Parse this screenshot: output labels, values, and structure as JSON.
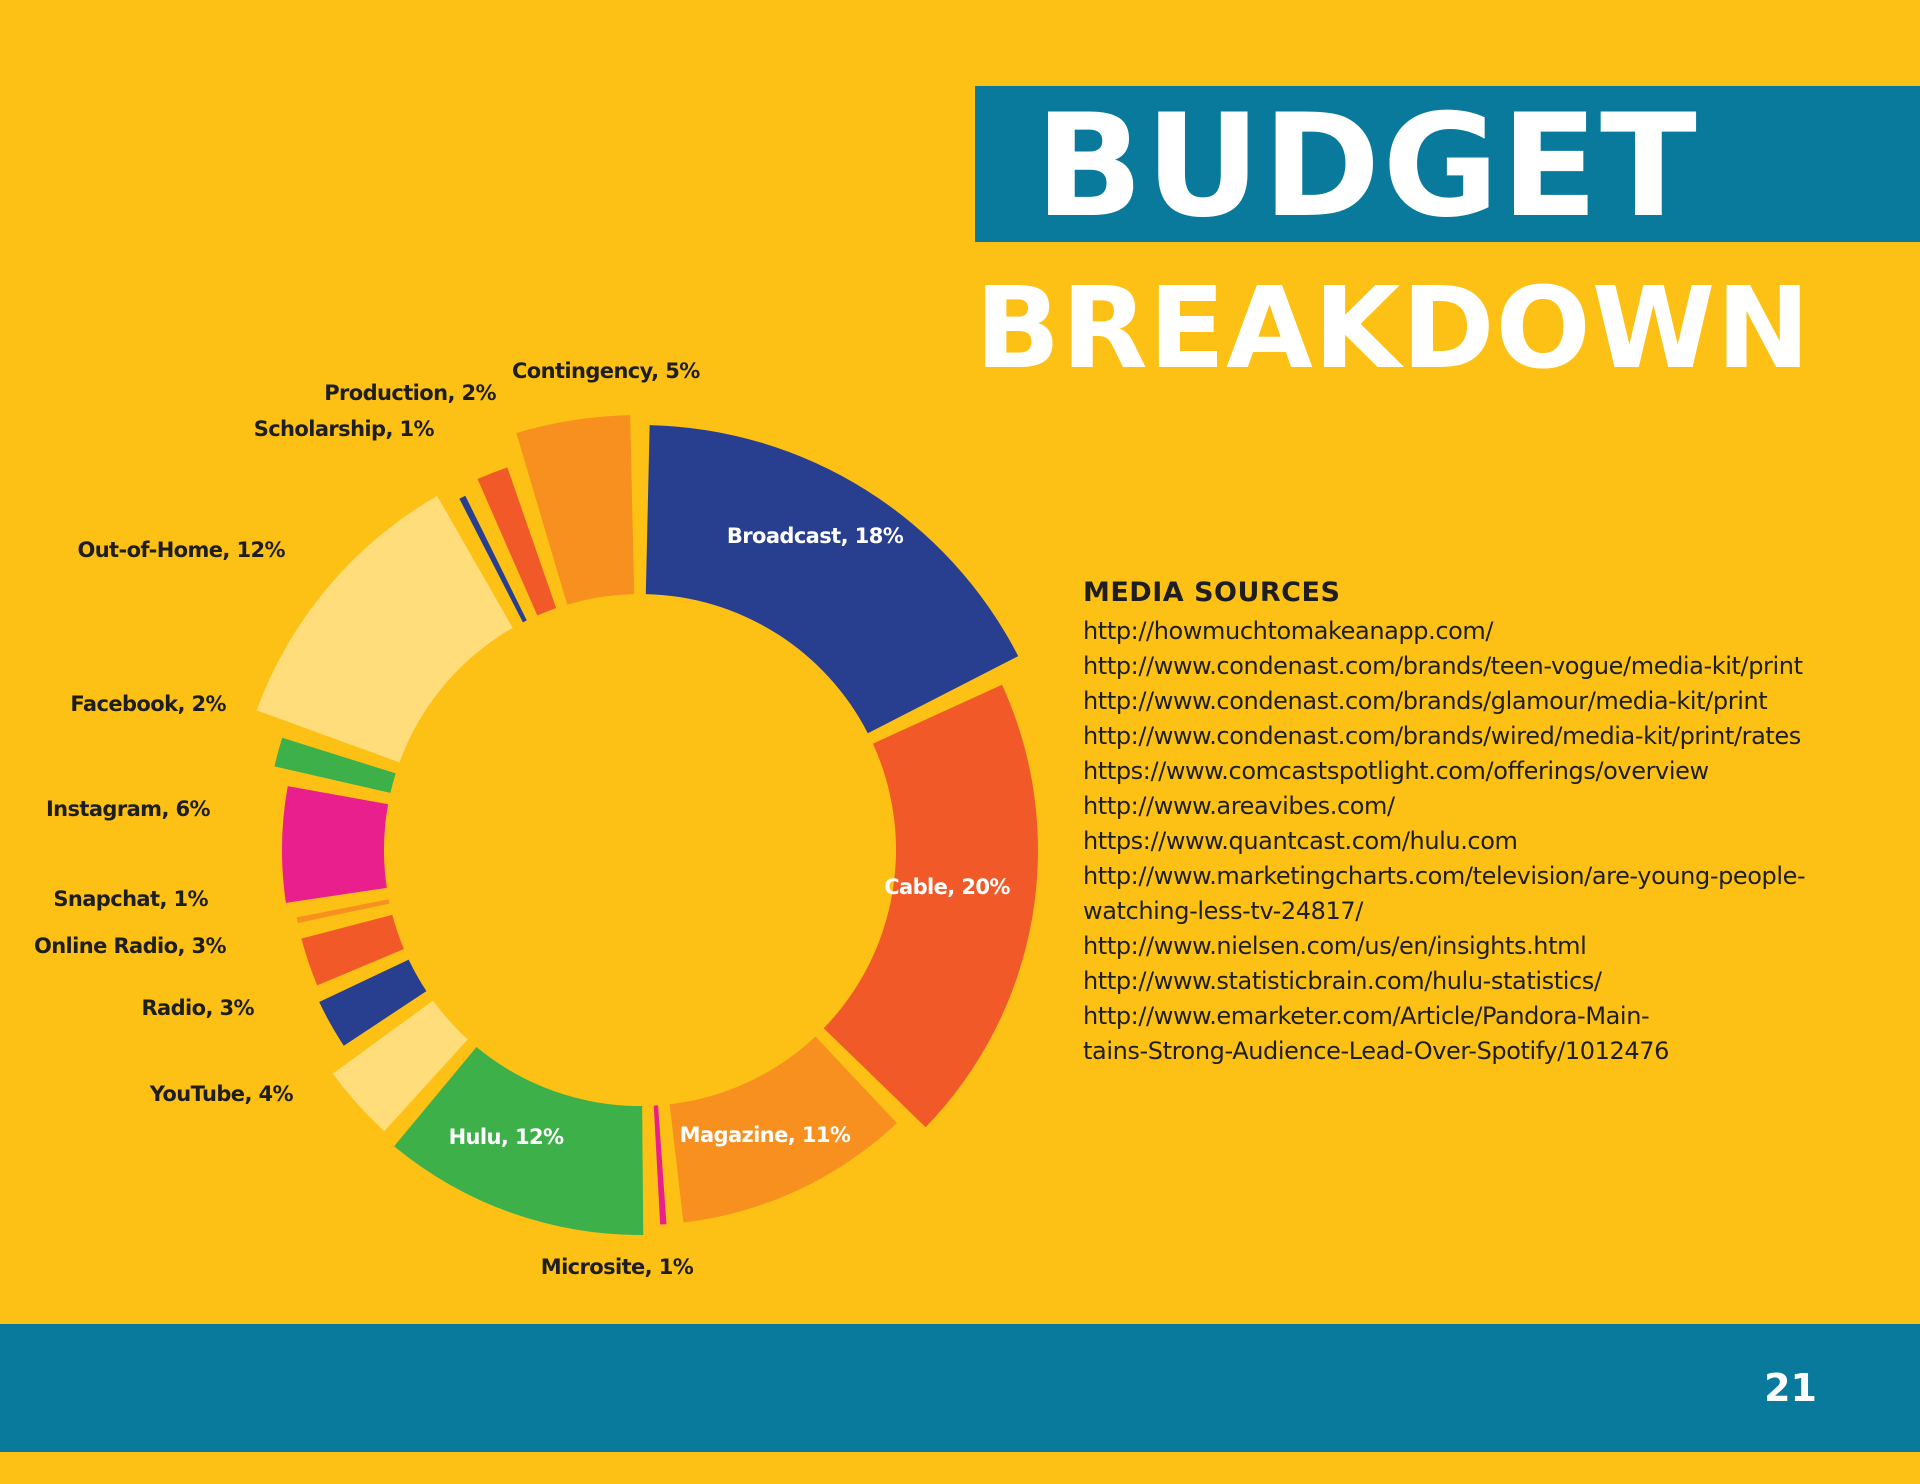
{
  "title": {
    "line1": "BUDGET",
    "line2": "BREAKDOWN"
  },
  "colors": {
    "background": "#FDC116",
    "banner": "#0A7A9C",
    "navy": "#283E8E",
    "red_orange": "#F15A28",
    "orange": "#F7901E",
    "green": "#3DB049",
    "magenta": "#EA1F8E",
    "light_yellow": "#FEDD7A"
  },
  "chart_data": {
    "type": "pie",
    "style": "donut",
    "slices": [
      {
        "label": "Broadcast",
        "value": 18,
        "display": "Broadcast, 18%",
        "color": "#283E8E",
        "label_color": "#FFFFFF"
      },
      {
        "label": "Cable",
        "value": 20,
        "display": "Cable, 20%",
        "color": "#F15A28",
        "label_color": "#FFFFFF"
      },
      {
        "label": "Magazine",
        "value": 11,
        "display": "Magazine, 11%",
        "color": "#F7901E",
        "label_color": "#FFFFFF"
      },
      {
        "label": "Microsite",
        "value": 1,
        "display": "Microsite, 1%",
        "color": "#EA1F8E",
        "label_color": "#1E1E1E"
      },
      {
        "label": "Hulu",
        "value": 12,
        "display": "Hulu, 12%",
        "color": "#3DB049",
        "label_color": "#FFFFFF"
      },
      {
        "label": "YouTube",
        "value": 4,
        "display": "YouTube, 4%",
        "color": "#FEDD7A",
        "label_color": "#1E1E1E"
      },
      {
        "label": "Radio",
        "value": 3,
        "display": "Radio, 3%",
        "color": "#283E8E",
        "label_color": "#1E1E1E"
      },
      {
        "label": "Online Radio",
        "value": 3,
        "display": "Online Radio, 3%",
        "color": "#F15A28",
        "label_color": "#1E1E1E"
      },
      {
        "label": "Snapchat",
        "value": 1,
        "display": "Snapchat, 1%",
        "color": "#F7901E",
        "label_color": "#1E1E1E"
      },
      {
        "label": "Instagram",
        "value": 6,
        "display": "Instagram, 6%",
        "color": "#EA1F8E",
        "label_color": "#1E1E1E"
      },
      {
        "label": "Facebook",
        "value": 2,
        "display": "Facebook, 2%",
        "color": "#3DB049",
        "label_color": "#1E1E1E"
      },
      {
        "label": "Out-of-Home",
        "value": 12,
        "display": "Out-of-Home, 12%",
        "color": "#FEDD7A",
        "label_color": "#1E1E1E"
      },
      {
        "label": "Scholarship",
        "value": 1,
        "display": "Scholarship, 1%",
        "color": "#283E8E",
        "label_color": "#1E1E1E"
      },
      {
        "label": "Production",
        "value": 2,
        "display": "Production, 2%",
        "color": "#F15A28",
        "label_color": "#1E1E1E"
      },
      {
        "label": "Contingency",
        "value": 5,
        "display": "Contingency, 5%",
        "color": "#F7901E",
        "label_color": "#1E1E1E"
      }
    ]
  },
  "sources": {
    "heading": "MEDIA SOURCES",
    "lines": [
      "http://howmuchtomakeanapp.com/",
      "http://www.condenast.com/brands/teen-vogue/media-kit/print",
      "http://www.condenast.com/brands/glamour/media-kit/print",
      "http://www.condenast.com/brands/wired/media-kit/print/rates",
      "https://www.comcastspotlight.com/offerings/overview",
      "http://www.areavibes.com/",
      "https://www.quantcast.com/hulu.com",
      "http://www.marketingcharts.com/television/are-young-people-",
      "watching-less-tv-24817/",
      "http://www.nielsen.com/us/en/insights.html",
      "http://www.statisticbrain.com/hulu-statistics/",
      "http://www.emarketer.com/Article/Pandora-Main-",
      "tains-Strong-Audience-Lead-Over-Spotify/1012476"
    ]
  },
  "footer": {
    "page_number": "21"
  }
}
